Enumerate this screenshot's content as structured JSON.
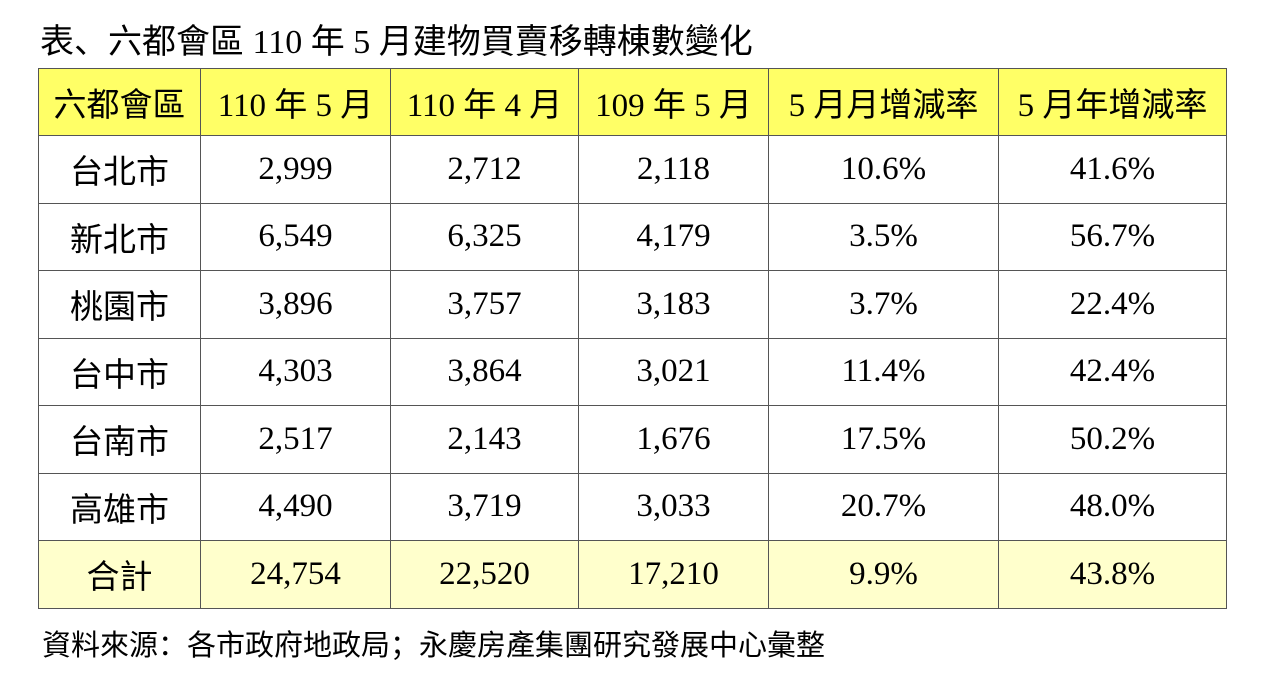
{
  "title": "表、六都會區 110 年 5 月建物買賣移轉棟數變化",
  "table": {
    "header": [
      "六都會區",
      "110 年 5 月",
      "110 年 4 月",
      "109 年 5 月",
      "5 月月增減率",
      "5 月年增減率"
    ],
    "rows": [
      [
        "台北市",
        "2,999",
        "2,712",
        "2,118",
        "10.6%",
        "41.6%"
      ],
      [
        "新北市",
        "6,549",
        "6,325",
        "4,179",
        "3.5%",
        "56.7%"
      ],
      [
        "桃園市",
        "3,896",
        "3,757",
        "3,183",
        "3.7%",
        "22.4%"
      ],
      [
        "台中市",
        "4,303",
        "3,864",
        "3,021",
        "11.4%",
        "42.4%"
      ],
      [
        "台南市",
        "2,517",
        "2,143",
        "1,676",
        "17.5%",
        "50.2%"
      ],
      [
        "高雄市",
        "4,490",
        "3,719",
        "3,033",
        "20.7%",
        "48.0%"
      ],
      [
        "合計",
        "24,754",
        "22,520",
        "17,210",
        "9.9%",
        "43.8%"
      ]
    ]
  },
  "source": "資料來源：各市政府地政局；永慶房產集團研究發展中心彙整"
}
